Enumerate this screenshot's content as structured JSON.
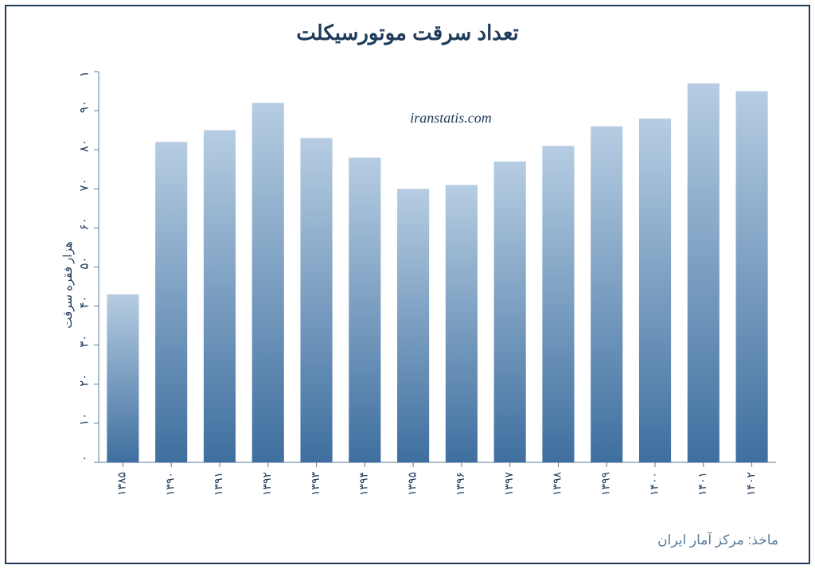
{
  "chart": {
    "type": "bar",
    "title": "تعداد سرقت موتورسیکلت",
    "y_axis_label": "هزار فقره سرقت",
    "watermark": "iranstatis.com",
    "source": "ماخذ: مرکز آمار ایران",
    "categories": [
      "۱۳۸۵",
      "۱۳۹۰",
      "۱۳۹۱",
      "۱۳۹۲",
      "۱۳۹۳",
      "۱۳۹۴",
      "۱۳۹۵",
      "۱۳۹۶",
      "۱۳۹۷",
      "۱۳۹۸",
      "۱۳۹۹",
      "۱۴۰۰",
      "۱۴۰۱",
      "۱۴۰۲"
    ],
    "values": [
      43,
      82,
      85,
      92,
      83,
      78,
      70,
      71,
      77,
      81,
      86,
      88,
      97,
      95
    ],
    "ylim": [
      0,
      100
    ],
    "ytick_step": 10,
    "ytick_labels": [
      "۰",
      "۱۰",
      "۲۰",
      "۳۰",
      "۴۰",
      "۵۰",
      "۶۰",
      "۷۰",
      "۸۰",
      "۹۰",
      "۱۰۰"
    ],
    "bar_gradient_top": "#b6cde2",
    "bar_gradient_bottom": "#3f6f9f",
    "axis_color": "#5b7a99",
    "border_color": "#1f3b5a",
    "text_color": "#1f3b5a",
    "background_color": "#ffffff",
    "bar_width_ratio": 0.66,
    "title_fontsize": 26,
    "label_fontsize": 15,
    "tick_fontsize": 14,
    "watermark_fontsize": 18,
    "source_fontsize": 17,
    "source_color": "#5b7a99"
  }
}
